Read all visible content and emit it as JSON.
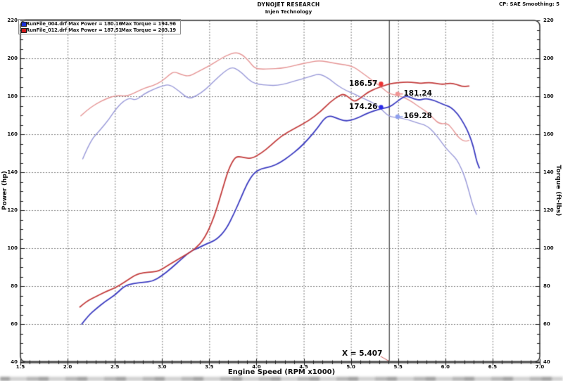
{
  "header": {
    "title": "DYNOJET RESEARCH",
    "subtitle": "Injen Technology",
    "right_info": "CP: SAE  Smoothing: 5"
  },
  "legend": {
    "rows": [
      {
        "swatch_color": "#1b2fd4",
        "file_and_power": "RunFile_004.drf Max Power = 180.16",
        "max_torque": "Max Torque = 194.96"
      },
      {
        "swatch_color": "#d41b1b",
        "file_and_power": "RunFile_012.drf Max Power = 187.51",
        "max_torque": "Max Torque = 203.19"
      }
    ]
  },
  "cursor": {
    "x_value": 5.407,
    "label": "X = 5.407"
  },
  "markers": [
    {
      "label": "186.57",
      "value": 186.57,
      "series": "red_power",
      "side": "left",
      "dot_color": "#ee3232"
    },
    {
      "label": "181.24",
      "value": 181.24,
      "series": "red_torque",
      "side": "right",
      "dot_color": "#f09494"
    },
    {
      "label": "174.26",
      "value": 174.26,
      "series": "blue_power",
      "side": "left",
      "dot_color": "#2a2ae8"
    },
    {
      "label": "169.28",
      "value": 169.28,
      "series": "blue_torque",
      "side": "right",
      "dot_color": "#8fa0ee"
    }
  ],
  "chart_data": {
    "type": "line",
    "xlabel": "Engine Speed (RPM x1000)",
    "ylabel_left": "Power (hp)",
    "ylabel_right": "Torque (ft-lbs)",
    "xlim": [
      1.5,
      7.0
    ],
    "ylim": [
      40,
      220
    ],
    "grid": true,
    "x_ticks": [
      "1.5",
      "2.0",
      "2.5",
      "3.0",
      "3.5",
      "4.0",
      "4.5",
      "5.0",
      "5.5",
      "6.0",
      "6.5",
      "7.0"
    ],
    "y_ticks": [
      "220",
      "200",
      "180",
      "160",
      "140",
      "120",
      "100",
      "80",
      "60",
      "40"
    ],
    "series": [
      {
        "name": "blue_torque",
        "run": "RunFile_004.drf",
        "unit": "ft-lbs",
        "color": "#9898d8",
        "width": 1.4,
        "points": [
          [
            2.16,
            147
          ],
          [
            2.24,
            156.5
          ],
          [
            2.34,
            162
          ],
          [
            2.44,
            168
          ],
          [
            2.5,
            172.7
          ],
          [
            2.59,
            177.5
          ],
          [
            2.66,
            179.1
          ],
          [
            2.72,
            177.8
          ],
          [
            2.81,
            181.3
          ],
          [
            2.91,
            183.7
          ],
          [
            3.0,
            185.5
          ],
          [
            3.08,
            186.3
          ],
          [
            3.18,
            182.8
          ],
          [
            3.28,
            178.6
          ],
          [
            3.36,
            180.1
          ],
          [
            3.46,
            183.5
          ],
          [
            3.56,
            188.5
          ],
          [
            3.66,
            193
          ],
          [
            3.74,
            195.5
          ],
          [
            3.82,
            193.5
          ],
          [
            3.88,
            190.5
          ],
          [
            3.95,
            187.5
          ],
          [
            4.02,
            186.3
          ],
          [
            4.12,
            185.8
          ],
          [
            4.22,
            185.7
          ],
          [
            4.32,
            186.8
          ],
          [
            4.42,
            188.3
          ],
          [
            4.52,
            189.6
          ],
          [
            4.6,
            191
          ],
          [
            4.67,
            191.9
          ],
          [
            4.77,
            189.3
          ],
          [
            4.85,
            185.9
          ],
          [
            4.95,
            183
          ],
          [
            5.03,
            181.3
          ],
          [
            5.12,
            179.2
          ],
          [
            5.2,
            177.4
          ],
          [
            5.28,
            175.2
          ],
          [
            5.35,
            171.8
          ],
          [
            5.407,
            169.28
          ],
          [
            5.5,
            168.8
          ],
          [
            5.6,
            167.8
          ],
          [
            5.7,
            166
          ],
          [
            5.8,
            164.7
          ],
          [
            5.88,
            161
          ],
          [
            5.95,
            156.5
          ],
          [
            6.0,
            153
          ],
          [
            6.07,
            149.3
          ],
          [
            6.12,
            146.8
          ],
          [
            6.17,
            141.9
          ],
          [
            6.21,
            136.9
          ],
          [
            6.25,
            130
          ],
          [
            6.29,
            122.5
          ],
          [
            6.33,
            117.8
          ]
        ]
      },
      {
        "name": "red_torque",
        "run": "RunFile_012.drf",
        "unit": "ft-lbs",
        "color": "#e59494",
        "width": 1.4,
        "points": [
          [
            2.14,
            169.7
          ],
          [
            2.2,
            172.5
          ],
          [
            2.3,
            176
          ],
          [
            2.4,
            178.5
          ],
          [
            2.48,
            180
          ],
          [
            2.55,
            180.5
          ],
          [
            2.62,
            180
          ],
          [
            2.72,
            182
          ],
          [
            2.82,
            184.5
          ],
          [
            2.9,
            185.5
          ],
          [
            3.0,
            188
          ],
          [
            3.08,
            191.5
          ],
          [
            3.13,
            193
          ],
          [
            3.2,
            191.5
          ],
          [
            3.28,
            190.4
          ],
          [
            3.37,
            192.7
          ],
          [
            3.48,
            195.5
          ],
          [
            3.58,
            198.5
          ],
          [
            3.68,
            201.5
          ],
          [
            3.78,
            203.2
          ],
          [
            3.85,
            202
          ],
          [
            3.92,
            198.5
          ],
          [
            3.98,
            194.8
          ],
          [
            4.05,
            194.3
          ],
          [
            4.15,
            194.5
          ],
          [
            4.25,
            194.7
          ],
          [
            4.35,
            195.5
          ],
          [
            4.45,
            196.8
          ],
          [
            4.55,
            197.8
          ],
          [
            4.65,
            198.8
          ],
          [
            4.75,
            198.2
          ],
          [
            4.85,
            197.2
          ],
          [
            4.95,
            196.5
          ],
          [
            5.03,
            195.5
          ],
          [
            5.1,
            193
          ],
          [
            5.17,
            190.5
          ],
          [
            5.25,
            187.5
          ],
          [
            5.33,
            184.5
          ],
          [
            5.407,
            181.24
          ],
          [
            5.5,
            180.5
          ],
          [
            5.58,
            179
          ],
          [
            5.65,
            177
          ],
          [
            5.72,
            174.5
          ],
          [
            5.8,
            172
          ],
          [
            5.87,
            168.5
          ],
          [
            5.94,
            165.3
          ],
          [
            6.02,
            165.9
          ],
          [
            6.08,
            162.5
          ],
          [
            6.13,
            158.8
          ],
          [
            6.18,
            156.8
          ],
          [
            6.22,
            156.3
          ],
          [
            6.25,
            156.8
          ]
        ]
      },
      {
        "name": "blue_power",
        "run": "RunFile_004.drf",
        "unit": "hp",
        "color": "#3a3ac0",
        "width": 1.8,
        "points": [
          [
            2.15,
            60
          ],
          [
            2.22,
            64.5
          ],
          [
            2.3,
            68
          ],
          [
            2.4,
            72
          ],
          [
            2.5,
            75.2
          ],
          [
            2.6,
            80
          ],
          [
            2.7,
            81.5
          ],
          [
            2.8,
            82
          ],
          [
            2.9,
            82.5
          ],
          [
            3.0,
            85.5
          ],
          [
            3.1,
            89.5
          ],
          [
            3.2,
            94
          ],
          [
            3.3,
            98.3
          ],
          [
            3.38,
            100
          ],
          [
            3.48,
            102.5
          ],
          [
            3.58,
            104.5
          ],
          [
            3.68,
            110
          ],
          [
            3.76,
            118
          ],
          [
            3.84,
            127
          ],
          [
            3.9,
            134
          ],
          [
            3.97,
            139.5
          ],
          [
            4.05,
            142
          ],
          [
            4.15,
            142.8
          ],
          [
            4.25,
            145
          ],
          [
            4.35,
            148.5
          ],
          [
            4.45,
            152.5
          ],
          [
            4.55,
            157.5
          ],
          [
            4.65,
            163.5
          ],
          [
            4.72,
            168.5
          ],
          [
            4.78,
            169.8
          ],
          [
            4.85,
            168.5
          ],
          [
            4.93,
            167
          ],
          [
            5.0,
            167.3
          ],
          [
            5.08,
            168.8
          ],
          [
            5.15,
            170.5
          ],
          [
            5.25,
            172.5
          ],
          [
            5.33,
            173.6
          ],
          [
            5.407,
            174.26
          ],
          [
            5.47,
            176.5
          ],
          [
            5.55,
            179.5
          ],
          [
            5.6,
            180.16
          ],
          [
            5.67,
            178.5
          ],
          [
            5.73,
            178
          ],
          [
            5.78,
            178.8
          ],
          [
            5.85,
            178.4
          ],
          [
            5.93,
            176.8
          ],
          [
            6.0,
            175.2
          ],
          [
            6.05,
            174.6
          ],
          [
            6.13,
            170.9
          ],
          [
            6.2,
            165.3
          ],
          [
            6.25,
            160.4
          ],
          [
            6.3,
            153
          ],
          [
            6.33,
            146
          ],
          [
            6.36,
            142.3
          ]
        ]
      },
      {
        "name": "red_power",
        "run": "RunFile_012.drf",
        "unit": "hp",
        "color": "#c23b3b",
        "width": 1.8,
        "points": [
          [
            2.13,
            69
          ],
          [
            2.2,
            72
          ],
          [
            2.3,
            74.5
          ],
          [
            2.4,
            77
          ],
          [
            2.5,
            79
          ],
          [
            2.6,
            82
          ],
          [
            2.72,
            86
          ],
          [
            2.8,
            87
          ],
          [
            2.9,
            87.5
          ],
          [
            2.97,
            88
          ],
          [
            3.05,
            90.5
          ],
          [
            3.15,
            93.5
          ],
          [
            3.25,
            96.5
          ],
          [
            3.35,
            99.5
          ],
          [
            3.45,
            105
          ],
          [
            3.55,
            116
          ],
          [
            3.64,
            131
          ],
          [
            3.7,
            141
          ],
          [
            3.76,
            147
          ],
          [
            3.8,
            148.4
          ],
          [
            3.88,
            147.6
          ],
          [
            3.95,
            147.2
          ],
          [
            4.05,
            150
          ],
          [
            4.15,
            154
          ],
          [
            4.26,
            159
          ],
          [
            4.4,
            163
          ],
          [
            4.55,
            167
          ],
          [
            4.68,
            172
          ],
          [
            4.78,
            177
          ],
          [
            4.88,
            180.5
          ],
          [
            4.93,
            181.2
          ],
          [
            5.0,
            178.5
          ],
          [
            5.04,
            177.2
          ],
          [
            5.1,
            179
          ],
          [
            5.18,
            182.2
          ],
          [
            5.27,
            184.2
          ],
          [
            5.35,
            185.6
          ],
          [
            5.407,
            186.57
          ],
          [
            5.5,
            187.2
          ],
          [
            5.6,
            187.5
          ],
          [
            5.68,
            187.2
          ],
          [
            5.75,
            186.8
          ],
          [
            5.82,
            187.3
          ],
          [
            5.9,
            186.9
          ],
          [
            5.97,
            186.2
          ],
          [
            6.05,
            187
          ],
          [
            6.12,
            186.3
          ],
          [
            6.18,
            185.1
          ],
          [
            6.25,
            185.4
          ]
        ]
      }
    ]
  }
}
